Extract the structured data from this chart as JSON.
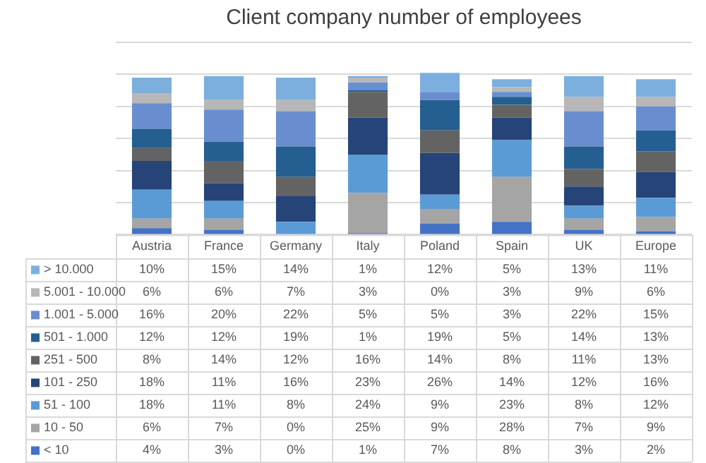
{
  "chart_data": {
    "type": "bar",
    "stacked": true,
    "title": "Client company number of employees",
    "categories": [
      "Austria",
      "France",
      "Germany",
      "Italy",
      "Poland",
      "Spain",
      "UK",
      "Europe"
    ],
    "grid": "y",
    "tick_labels": "x",
    "legend": "bottom",
    "series": [
      {
        "name": "< 10",
        "color": "#4472c4",
        "values": [
          4,
          3,
          0,
          1,
          7,
          8,
          3,
          2
        ],
        "value_labels": [
          "4%",
          "3%",
          "0%",
          "1%",
          "7%",
          "8%",
          "3%",
          "2%"
        ]
      },
      {
        "name": "10 - 50",
        "color": "#a5a5a5",
        "values": [
          6,
          7,
          0,
          25,
          9,
          28,
          7,
          9
        ],
        "value_labels": [
          "6%",
          "7%",
          "0%",
          "25%",
          "9%",
          "28%",
          "7%",
          "9%"
        ]
      },
      {
        "name": "51 - 100",
        "color": "#5b9bd5",
        "values": [
          18,
          11,
          8,
          24,
          9,
          23,
          8,
          12
        ],
        "value_labels": [
          "18%",
          "11%",
          "8%",
          "24%",
          "9%",
          "23%",
          "8%",
          "12%"
        ]
      },
      {
        "name": "101 - 250",
        "color": "#264478",
        "values": [
          18,
          11,
          16,
          23,
          26,
          14,
          12,
          16
        ],
        "value_labels": [
          "18%",
          "11%",
          "16%",
          "23%",
          "26%",
          "14%",
          "12%",
          "16%"
        ]
      },
      {
        "name": "251 - 500",
        "color": "#636363",
        "values": [
          8,
          14,
          12,
          16,
          14,
          8,
          11,
          13
        ],
        "value_labels": [
          "8%",
          "14%",
          "12%",
          "16%",
          "14%",
          "8%",
          "11%",
          "13%"
        ]
      },
      {
        "name": "501 - 1.000",
        "color": "#255e91",
        "values": [
          12,
          12,
          19,
          1,
          19,
          5,
          14,
          13
        ],
        "value_labels": [
          "12%",
          "12%",
          "19%",
          "1%",
          "19%",
          "5%",
          "14%",
          "13%"
        ]
      },
      {
        "name": "1.001 - 5.000",
        "color": "#698ed0",
        "values": [
          16,
          20,
          22,
          5,
          5,
          3,
          22,
          15
        ],
        "value_labels": [
          "16%",
          "20%",
          "22%",
          "5%",
          "5%",
          "3%",
          "22%",
          "15%"
        ]
      },
      {
        "name": "5.001 - 10.000",
        "color": "#b7b7b7",
        "values": [
          6,
          6,
          7,
          3,
          0,
          3,
          9,
          6
        ],
        "value_labels": [
          "6%",
          "6%",
          "7%",
          "3%",
          "0%",
          "3%",
          "9%",
          "6%"
        ]
      },
      {
        "name": "> 10.000",
        "color": "#7cafdd",
        "values": [
          10,
          15,
          14,
          1,
          12,
          5,
          13,
          11
        ],
        "value_labels": [
          "10%",
          "15%",
          "14%",
          "1%",
          "12%",
          "5%",
          "13%",
          "11%"
        ]
      }
    ]
  }
}
